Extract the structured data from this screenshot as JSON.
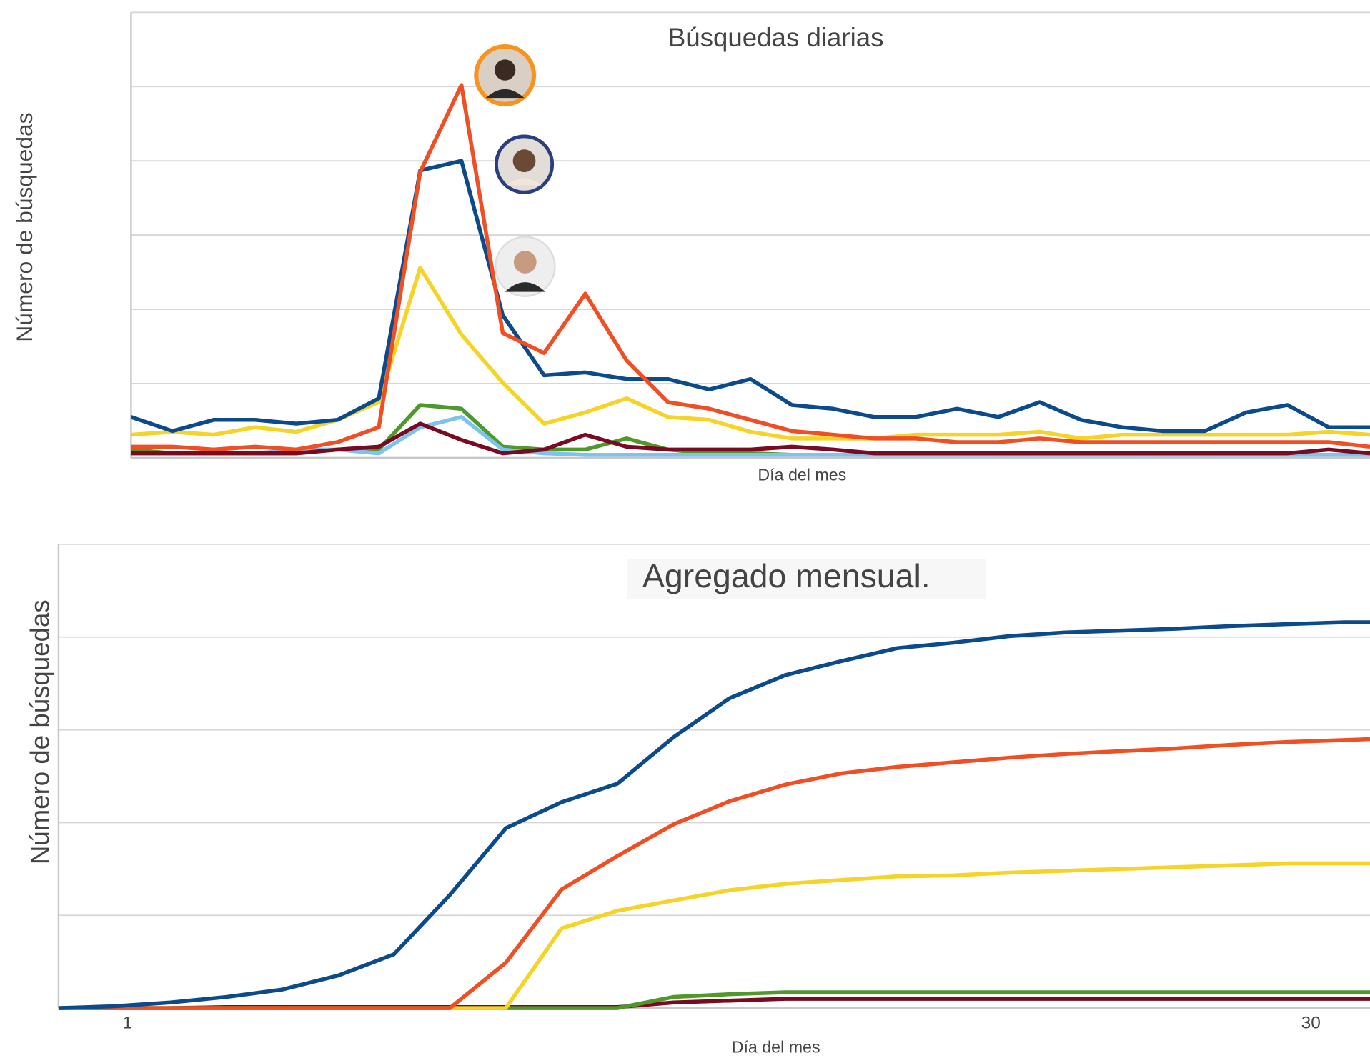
{
  "chart_data": [
    {
      "type": "line",
      "title": "Búsquedas diarias",
      "x_label": "Día del mes",
      "y_label": "Número de búsquedas",
      "categories": [
        null,
        null,
        null,
        null,
        null,
        null,
        null,
        null,
        null,
        null,
        null,
        null,
        null,
        null,
        null,
        null,
        null,
        null,
        null,
        null,
        null,
        null,
        null,
        null,
        null,
        null,
        null,
        null,
        null,
        null,
        null
      ],
      "ylim": [
        0,
        6
      ],
      "ygrid": [
        1,
        2,
        3,
        4,
        5
      ],
      "grid": true,
      "series": [
        {
          "color": "#f5d327",
          "values": [
            0.31,
            0.35,
            0.31,
            0.41,
            0.35,
            0.51,
            0.75,
            2.56,
            1.66,
            1.01,
            0.46,
            0.61,
            0.8,
            0.55,
            0.51,
            0.35,
            0.26,
            0.26,
            0.26,
            0.31,
            0.31,
            0.31,
            0.35,
            0.26,
            0.31,
            0.31,
            0.31,
            0.31,
            0.31,
            0.35,
            0.31
          ]
        },
        {
          "color": "#4d9a2a",
          "values": [
            0.11,
            0.06,
            0.06,
            0.06,
            0.06,
            0.11,
            0.11,
            0.71,
            0.66,
            0.15,
            0.11,
            0.11,
            0.26,
            0.11,
            0.06,
            0.06,
            0.04,
            0.04,
            0.04,
            0.04,
            0.04,
            0.04,
            0.04,
            0.04,
            0.04,
            0.04,
            0.04,
            0.04,
            0.04,
            0.04,
            0.04
          ]
        },
        {
          "color": "#7cc3ee",
          "values": [
            0.06,
            0.06,
            0.06,
            0.06,
            0.11,
            0.11,
            0.06,
            0.41,
            0.55,
            0.11,
            0.06,
            0.04,
            0.04,
            0.04,
            0.04,
            0.04,
            0.04,
            0.04,
            0.04,
            0.04,
            0.04,
            0.04,
            0.04,
            0.04,
            0.04,
            0.04,
            0.04,
            0.04,
            0.04,
            0.04,
            0.04
          ]
        },
        {
          "color": "#7a0a22",
          "values": [
            0.06,
            0.06,
            0.06,
            0.06,
            0.06,
            0.11,
            0.15,
            0.46,
            0.24,
            0.06,
            0.11,
            0.31,
            0.15,
            0.11,
            0.11,
            0.11,
            0.15,
            0.11,
            0.06,
            0.06,
            0.06,
            0.06,
            0.06,
            0.06,
            0.06,
            0.06,
            0.06,
            0.06,
            0.06,
            0.11,
            0.06
          ]
        },
        {
          "color": "#0b4a8b",
          "values": [
            0.55,
            0.36,
            0.51,
            0.51,
            0.46,
            0.51,
            0.8,
            3.87,
            4.0,
            1.92,
            1.11,
            1.15,
            1.06,
            1.06,
            0.92,
            1.06,
            0.71,
            0.66,
            0.55,
            0.55,
            0.66,
            0.55,
            0.75,
            0.51,
            0.41,
            0.36,
            0.36,
            0.61,
            0.71,
            0.41,
            0.41
          ]
        },
        {
          "color": "#f04e23",
          "values": [
            0.15,
            0.15,
            0.11,
            0.15,
            0.11,
            0.21,
            0.41,
            3.85,
            5.02,
            1.68,
            1.41,
            2.21,
            1.31,
            0.75,
            0.66,
            0.51,
            0.36,
            0.31,
            0.26,
            0.26,
            0.21,
            0.21,
            0.26,
            0.21,
            0.21,
            0.21,
            0.21,
            0.21,
            0.21,
            0.21,
            0.15
          ]
        }
      ]
    },
    {
      "type": "line",
      "title": "Agregado mensual.",
      "x_label": "Día del mes",
      "y_label": "Número de búsquedas",
      "x": [
        -0.69,
        0.68,
        2.05,
        3.42,
        4.79,
        6.16,
        7.53,
        8.9,
        10.27,
        11.64,
        13.01,
        14.38,
        15.75,
        17.12,
        18.49,
        19.86,
        21.24,
        22.61,
        23.98,
        25.35,
        26.72,
        28.09,
        29.46,
        30.83,
        31.45
      ],
      "xlim": [
        -0.69,
        31.45
      ],
      "xticks": [
        1,
        30
      ],
      "ylim": [
        0,
        5
      ],
      "ygrid": [
        1,
        2,
        3,
        4
      ],
      "grid": true,
      "series": [
        {
          "color": "#7a0a22",
          "values": [
            0,
            0,
            0,
            0.01,
            0.01,
            0.01,
            0.01,
            0.01,
            0.01,
            0.01,
            0.01,
            0.06,
            0.08,
            0.1,
            0.1,
            0.1,
            0.1,
            0.1,
            0.1,
            0.1,
            0.1,
            0.1,
            0.1,
            0.1,
            0.1
          ]
        },
        {
          "color": "#4d9a2a",
          "values": [
            0,
            0,
            0,
            0,
            0,
            0,
            0,
            0,
            0,
            0,
            0,
            0.12,
            0.15,
            0.17,
            0.17,
            0.17,
            0.17,
            0.17,
            0.17,
            0.17,
            0.17,
            0.17,
            0.17,
            0.17,
            0.17
          ]
        },
        {
          "color": "#f5d327",
          "values": [
            0,
            0,
            0,
            0,
            0,
            0,
            0,
            0,
            0,
            0.86,
            1.05,
            1.16,
            1.27,
            1.34,
            1.38,
            1.42,
            1.43,
            1.46,
            1.48,
            1.5,
            1.52,
            1.54,
            1.56,
            1.56,
            1.56
          ]
        },
        {
          "color": "#f04e23",
          "values": [
            0,
            0,
            0,
            0,
            0,
            0,
            0,
            0,
            0.49,
            1.28,
            1.64,
            1.98,
            2.23,
            2.41,
            2.53,
            2.6,
            2.65,
            2.7,
            2.74,
            2.77,
            2.8,
            2.84,
            2.87,
            2.89,
            2.9
          ]
        },
        {
          "color": "#0b4a8b",
          "values": [
            0,
            0.02,
            0.06,
            0.12,
            0.2,
            0.35,
            0.58,
            1.22,
            1.94,
            2.22,
            2.42,
            2.92,
            3.34,
            3.59,
            3.74,
            3.88,
            3.94,
            4.01,
            4.05,
            4.07,
            4.09,
            4.12,
            4.14,
            4.16,
            4.16
          ]
        }
      ]
    }
  ]
}
